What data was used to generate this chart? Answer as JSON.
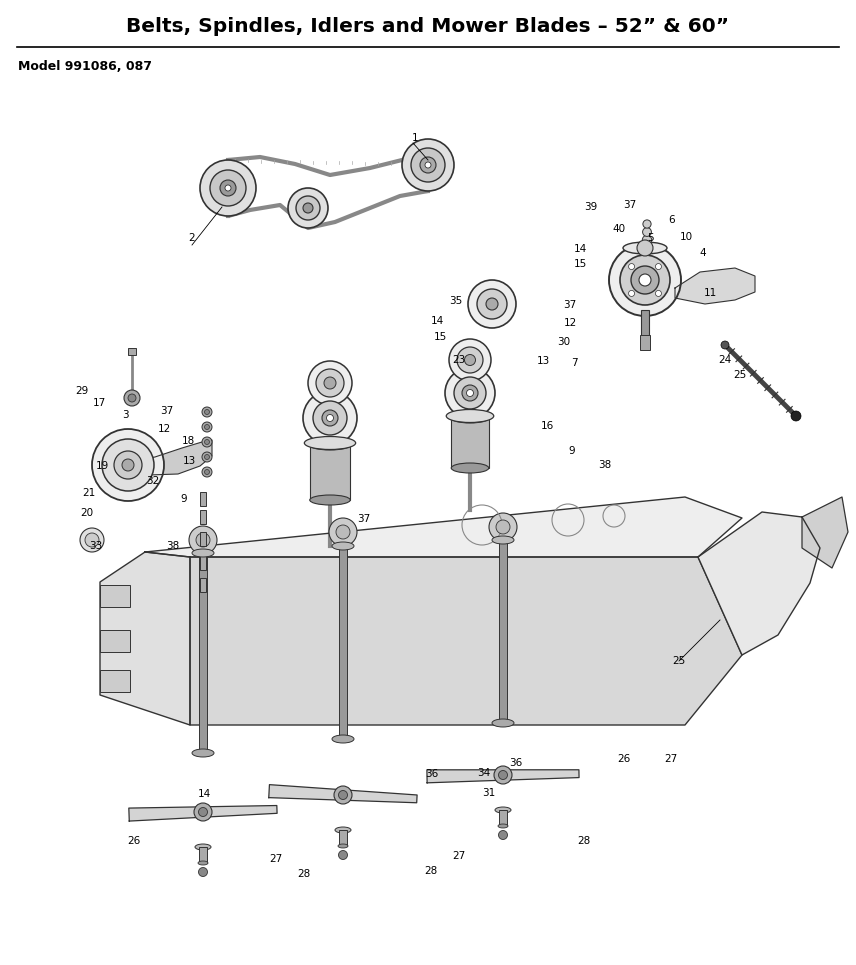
{
  "title": "Belts, Spindles, Idlers and Mower Blades – 52” & 60”",
  "model_text": "Model 991086, 087",
  "bg_color": "#ffffff",
  "fig_w": 8.56,
  "fig_h": 9.65,
  "dpi": 100,
  "part_labels": [
    [
      415,
      138,
      "1"
    ],
    [
      192,
      238,
      "2"
    ],
    [
      591,
      207,
      "39"
    ],
    [
      630,
      205,
      "37"
    ],
    [
      672,
      220,
      "6"
    ],
    [
      619,
      229,
      "40"
    ],
    [
      651,
      238,
      "5"
    ],
    [
      686,
      237,
      "10"
    ],
    [
      703,
      253,
      "4"
    ],
    [
      580,
      249,
      "14"
    ],
    [
      580,
      264,
      "15"
    ],
    [
      710,
      293,
      "11"
    ],
    [
      725,
      360,
      "24"
    ],
    [
      740,
      375,
      "25"
    ],
    [
      456,
      301,
      "35"
    ],
    [
      437,
      321,
      "14"
    ],
    [
      440,
      337,
      "15"
    ],
    [
      459,
      360,
      "23"
    ],
    [
      570,
      305,
      "37"
    ],
    [
      570,
      323,
      "12"
    ],
    [
      564,
      342,
      "30"
    ],
    [
      543,
      361,
      "13"
    ],
    [
      574,
      363,
      "7"
    ],
    [
      547,
      426,
      "16"
    ],
    [
      572,
      451,
      "9"
    ],
    [
      605,
      465,
      "38"
    ],
    [
      82,
      391,
      "29"
    ],
    [
      99,
      403,
      "17"
    ],
    [
      125,
      415,
      "3"
    ],
    [
      167,
      411,
      "37"
    ],
    [
      164,
      429,
      "12"
    ],
    [
      188,
      441,
      "18"
    ],
    [
      189,
      461,
      "13"
    ],
    [
      102,
      466,
      "19"
    ],
    [
      89,
      493,
      "21"
    ],
    [
      87,
      513,
      "20"
    ],
    [
      96,
      546,
      "33"
    ],
    [
      153,
      481,
      "32"
    ],
    [
      184,
      499,
      "9"
    ],
    [
      173,
      546,
      "38"
    ],
    [
      364,
      519,
      "37"
    ],
    [
      679,
      661,
      "25"
    ],
    [
      134,
      841,
      "26"
    ],
    [
      204,
      794,
      "14"
    ],
    [
      276,
      859,
      "27"
    ],
    [
      304,
      874,
      "28"
    ],
    [
      432,
      774,
      "36"
    ],
    [
      484,
      773,
      "34"
    ],
    [
      489,
      793,
      "31"
    ],
    [
      516,
      763,
      "36"
    ],
    [
      624,
      759,
      "26"
    ],
    [
      671,
      759,
      "27"
    ],
    [
      584,
      841,
      "28"
    ],
    [
      459,
      856,
      "27"
    ],
    [
      431,
      871,
      "28"
    ]
  ]
}
